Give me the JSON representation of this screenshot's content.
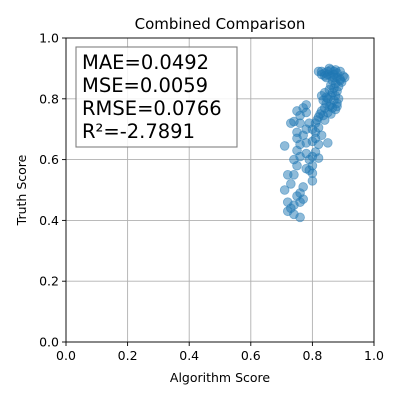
{
  "chart_data": {
    "type": "scatter",
    "title": "Combined Comparison",
    "xlabel": "Algorithm Score",
    "ylabel": "Truth Score",
    "xlim": [
      0.0,
      1.0
    ],
    "ylim": [
      0.0,
      1.0
    ],
    "xticks": [
      "0.0",
      "0.2",
      "0.4",
      "0.6",
      "0.8",
      "1.0"
    ],
    "yticks": [
      "0.0",
      "0.2",
      "0.4",
      "0.6",
      "0.8",
      "1.0"
    ],
    "grid": true,
    "point_color": "#1f77b4",
    "point_alpha": 0.5,
    "stats": [
      "MAE=0.0492",
      "MSE=0.0059",
      "RMSE=0.0766",
      "R²=-2.7891"
    ],
    "stats_placement": "top-left",
    "points": [
      [
        0.82,
        0.89
      ],
      [
        0.83,
        0.89
      ],
      [
        0.84,
        0.885
      ],
      [
        0.85,
        0.89
      ],
      [
        0.86,
        0.895
      ],
      [
        0.87,
        0.89
      ],
      [
        0.88,
        0.885
      ],
      [
        0.89,
        0.89
      ],
      [
        0.9,
        0.875
      ],
      [
        0.905,
        0.87
      ],
      [
        0.83,
        0.88
      ],
      [
        0.84,
        0.875
      ],
      [
        0.85,
        0.88
      ],
      [
        0.86,
        0.875
      ],
      [
        0.87,
        0.88
      ],
      [
        0.88,
        0.87
      ],
      [
        0.89,
        0.865
      ],
      [
        0.895,
        0.855
      ],
      [
        0.855,
        0.9
      ],
      [
        0.875,
        0.895
      ],
      [
        0.845,
        0.87
      ],
      [
        0.865,
        0.86
      ],
      [
        0.875,
        0.85
      ],
      [
        0.885,
        0.84
      ],
      [
        0.86,
        0.845
      ],
      [
        0.87,
        0.835
      ],
      [
        0.88,
        0.825
      ],
      [
        0.865,
        0.82
      ],
      [
        0.875,
        0.81
      ],
      [
        0.885,
        0.8
      ],
      [
        0.855,
        0.83
      ],
      [
        0.86,
        0.81
      ],
      [
        0.85,
        0.8
      ],
      [
        0.87,
        0.795
      ],
      [
        0.88,
        0.785
      ],
      [
        0.84,
        0.82
      ],
      [
        0.845,
        0.805
      ],
      [
        0.835,
        0.795
      ],
      [
        0.845,
        0.785
      ],
      [
        0.855,
        0.775
      ],
      [
        0.865,
        0.77
      ],
      [
        0.875,
        0.765
      ],
      [
        0.84,
        0.77
      ],
      [
        0.83,
        0.76
      ],
      [
        0.85,
        0.755
      ],
      [
        0.86,
        0.75
      ],
      [
        0.835,
        0.745
      ],
      [
        0.825,
        0.75
      ],
      [
        0.82,
        0.74
      ],
      [
        0.815,
        0.73
      ],
      [
        0.81,
        0.72
      ],
      [
        0.84,
        0.73
      ],
      [
        0.82,
        0.705
      ],
      [
        0.81,
        0.69
      ],
      [
        0.83,
        0.68
      ],
      [
        0.81,
        0.67
      ],
      [
        0.8,
        0.66
      ],
      [
        0.82,
        0.65
      ],
      [
        0.85,
        0.655
      ],
      [
        0.81,
        0.625
      ],
      [
        0.8,
        0.61
      ],
      [
        0.82,
        0.605
      ],
      [
        0.79,
        0.6
      ],
      [
        0.78,
        0.62
      ],
      [
        0.8,
        0.58
      ],
      [
        0.79,
        0.565
      ],
      [
        0.8,
        0.555
      ],
      [
        0.78,
        0.57
      ],
      [
        0.8,
        0.53
      ],
      [
        0.77,
        0.51
      ],
      [
        0.76,
        0.49
      ],
      [
        0.77,
        0.47
      ],
      [
        0.75,
        0.48
      ],
      [
        0.76,
        0.46
      ],
      [
        0.74,
        0.45
      ],
      [
        0.73,
        0.44
      ],
      [
        0.72,
        0.43
      ],
      [
        0.74,
        0.42
      ],
      [
        0.76,
        0.41
      ],
      [
        0.72,
        0.46
      ],
      [
        0.71,
        0.5
      ],
      [
        0.73,
        0.52
      ],
      [
        0.74,
        0.55
      ],
      [
        0.72,
        0.55
      ],
      [
        0.75,
        0.58
      ],
      [
        0.74,
        0.6
      ],
      [
        0.76,
        0.61
      ],
      [
        0.75,
        0.63
      ],
      [
        0.76,
        0.65
      ],
      [
        0.78,
        0.655
      ],
      [
        0.75,
        0.67
      ],
      [
        0.77,
        0.68
      ],
      [
        0.75,
        0.69
      ],
      [
        0.78,
        0.7
      ],
      [
        0.76,
        0.72
      ],
      [
        0.74,
        0.725
      ],
      [
        0.73,
        0.72
      ],
      [
        0.76,
        0.745
      ],
      [
        0.78,
        0.755
      ],
      [
        0.75,
        0.76
      ],
      [
        0.77,
        0.77
      ],
      [
        0.78,
        0.78
      ],
      [
        0.71,
        0.645
      ],
      [
        0.8,
        0.7
      ],
      [
        0.79,
        0.72
      ],
      [
        0.83,
        0.81
      ],
      [
        0.86,
        0.78
      ],
      [
        0.88,
        0.775
      ],
      [
        0.89,
        0.86
      ],
      [
        0.87,
        0.87
      ]
    ]
  }
}
